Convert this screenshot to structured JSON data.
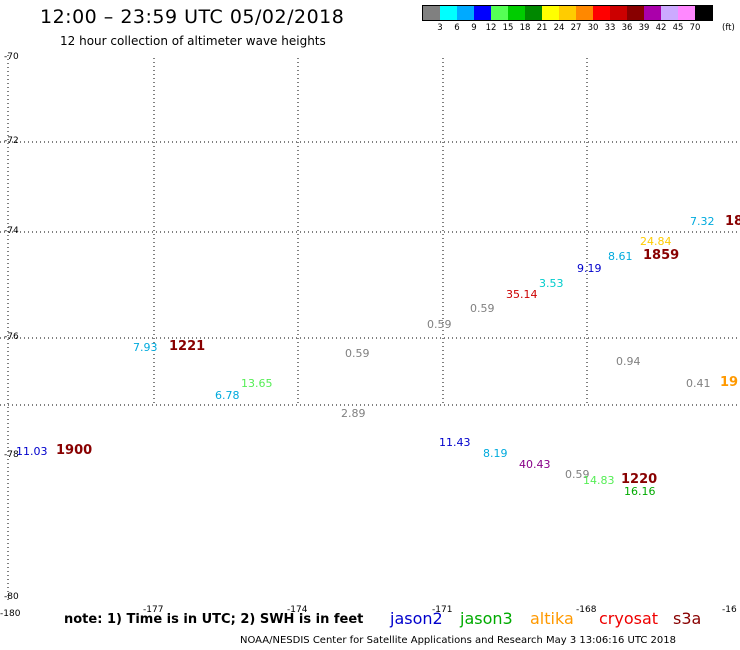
{
  "header": {
    "title": "12:00 – 23:59 UTC 05/02/2018",
    "subtitle": "12 hour collection of altimeter wave heights"
  },
  "legend": {
    "colors": [
      "#808080",
      "#00ffff",
      "#00aaff",
      "#0000ff",
      "#55ff55",
      "#00cc00",
      "#008800",
      "#ffff00",
      "#ffcc00",
      "#ff8800",
      "#ff0000",
      "#cc0000",
      "#880000",
      "#aa00aa",
      "#ccaaff",
      "#ff88ff",
      "#000000"
    ],
    "labels": [
      "3",
      "6",
      "9",
      "12",
      "15",
      "18",
      "21",
      "24",
      "27",
      "30",
      "33",
      "36",
      "39",
      "42",
      "45",
      "70"
    ],
    "unit": "(ft)"
  },
  "map": {
    "lat_labels": [
      "-70",
      "-72",
      "-74",
      "-76",
      "-78",
      "-80"
    ],
    "lon_labels": [
      "-180",
      "-177",
      "-174",
      "-171",
      "-168",
      "-16"
    ],
    "wave_heights": [
      {
        "text": "7.32",
        "color": "#00aadd"
      },
      {
        "text": "24.84",
        "color": "#ffcc00"
      },
      {
        "text": "8.61",
        "color": "#00aadd"
      },
      {
        "text": "9.19",
        "color": "#0000cc"
      },
      {
        "text": "3.53",
        "color": "#00cccc"
      },
      {
        "text": "35.14",
        "color": "#cc0000"
      },
      {
        "text": "0.59",
        "color": "#808080"
      },
      {
        "text": "0.59",
        "color": "#808080"
      },
      {
        "text": "7.93",
        "color": "#00aadd"
      },
      {
        "text": "0.59",
        "color": "#808080"
      },
      {
        "text": "0.94",
        "color": "#808080"
      },
      {
        "text": "0.41",
        "color": "#808080"
      },
      {
        "text": "13.65",
        "color": "#55ee55"
      },
      {
        "text": "6.78",
        "color": "#00aadd"
      },
      {
        "text": "2.89",
        "color": "#808080"
      },
      {
        "text": "11.03",
        "color": "#0000cc"
      },
      {
        "text": "11.43",
        "color": "#0000cc"
      },
      {
        "text": "8.19",
        "color": "#00aadd"
      },
      {
        "text": "40.43",
        "color": "#880088"
      },
      {
        "text": "0.59",
        "color": "#808080"
      },
      {
        "text": "14.83",
        "color": "#55ee55"
      },
      {
        "text": "16.16",
        "color": "#00aa00"
      }
    ],
    "times": [
      {
        "text": "18",
        "color": "#880000"
      },
      {
        "text": "1859",
        "color": "#880000"
      },
      {
        "text": "1221",
        "color": "#880000"
      },
      {
        "text": "19",
        "color": "#ff9900"
      },
      {
        "text": "1900",
        "color": "#880000"
      },
      {
        "text": "1220",
        "color": "#880000"
      }
    ]
  },
  "footer": {
    "note": "note:  1) Time is in UTC;  2) SWH is in feet",
    "satellites": [
      {
        "name": "jason2",
        "color": "#0000cc"
      },
      {
        "name": "jason3",
        "color": "#00aa00"
      },
      {
        "name": "altika",
        "color": "#ff9900"
      },
      {
        "name": "cryosat",
        "color": "#ee0000"
      },
      {
        "name": "s3a",
        "color": "#880000"
      }
    ],
    "credit": "NOAA/NESDIS Center for Satellite Applications and Research    May  3 13:06:16 UTC 2018"
  }
}
